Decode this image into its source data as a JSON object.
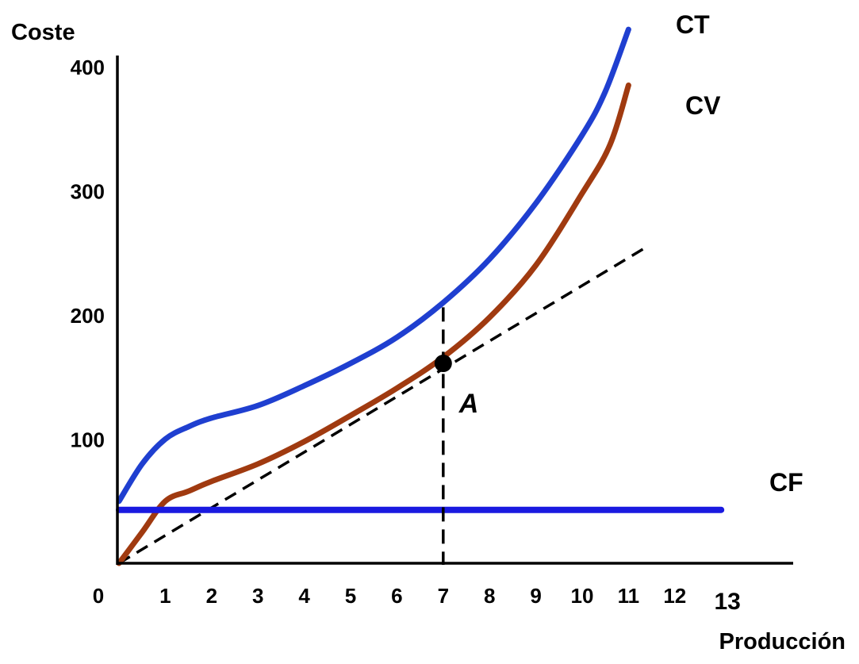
{
  "chart_data": {
    "type": "line",
    "ylabel": "Coste",
    "xlabel": "Producción",
    "xlim": [
      0,
      13
    ],
    "ylim": [
      0,
      400
    ],
    "x_ticks": [
      "0",
      "1",
      "2",
      "3",
      "4",
      "5",
      "6",
      "7",
      "8",
      "9",
      "10",
      "11",
      "12",
      "13"
    ],
    "y_ticks": [
      "100",
      "200",
      "300",
      "400"
    ],
    "grid": false,
    "series": [
      {
        "name": "CT",
        "color": "#1f3fd0",
        "points": [
          [
            0,
            50
          ],
          [
            0.5,
            80
          ],
          [
            1,
            100
          ],
          [
            1.5,
            110
          ],
          [
            2,
            117
          ],
          [
            3,
            127
          ],
          [
            4,
            143
          ],
          [
            5,
            161
          ],
          [
            6,
            182
          ],
          [
            7,
            210
          ],
          [
            8,
            245
          ],
          [
            9,
            290
          ],
          [
            10,
            345
          ],
          [
            10.5,
            380
          ],
          [
            11,
            430
          ]
        ]
      },
      {
        "name": "CV",
        "color": "#a03a10",
        "points": [
          [
            0,
            0
          ],
          [
            0.5,
            25
          ],
          [
            1,
            50
          ],
          [
            1.5,
            58
          ],
          [
            2,
            66
          ],
          [
            3,
            80
          ],
          [
            4,
            98
          ],
          [
            5,
            119
          ],
          [
            6,
            141
          ],
          [
            7,
            166
          ],
          [
            8,
            198
          ],
          [
            9,
            240
          ],
          [
            10,
            298
          ],
          [
            10.6,
            337
          ],
          [
            11,
            385
          ]
        ]
      },
      {
        "name": "CF",
        "color": "#1a1ae0",
        "points": [
          [
            0,
            43
          ],
          [
            13,
            43
          ]
        ]
      }
    ],
    "tangent_line": {
      "points": [
        [
          0,
          0
        ],
        [
          11.4,
          255
        ]
      ],
      "style": "dashed"
    },
    "vertical_line": {
      "x": 7,
      "style": "dashed"
    },
    "annotations": [
      {
        "label": "A",
        "x": 7,
        "y": 161
      }
    ]
  }
}
